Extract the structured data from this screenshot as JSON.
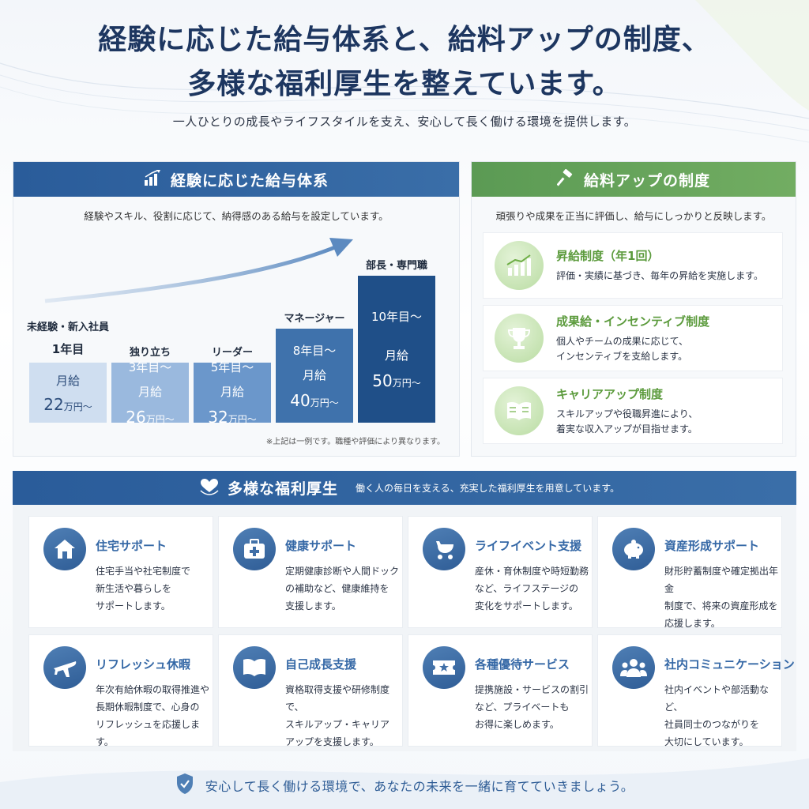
{
  "header": {
    "title_line1": "経験に応じた給与体系と、給料アップの制度、",
    "title_line2": "多様な福利厚生を整えています。",
    "subtitle": "一人ひとりの成長やライフスタイルを支え、安心して長く働ける環境を提供します。"
  },
  "salary": {
    "title": "経験に応じた給与体系",
    "description": "経験やスキル、役割に応じて、納得感のある給与を設定しています。",
    "note": "※上記は一例です。職種や評価により異なります。",
    "levels": [
      {
        "rank": "未経験・新入社員",
        "year": "1年目",
        "label": "月給",
        "amount": "22",
        "unit": "万円〜"
      },
      {
        "rank": "独り立ち",
        "year": "3年目〜",
        "label": "月給",
        "amount": "26",
        "unit": "万円〜"
      },
      {
        "rank": "リーダー",
        "year": "5年目〜",
        "label": "月給",
        "amount": "32",
        "unit": "万円〜"
      },
      {
        "rank": "マネージャー",
        "year": "8年目〜",
        "label": "月給",
        "amount": "40",
        "unit": "万円〜"
      },
      {
        "rank": "部長・専門職",
        "year": "10年目〜",
        "label": "月給",
        "amount": "50",
        "unit": "万円〜"
      }
    ],
    "colors": [
      "#cfdef0",
      "#9ab9de",
      "#6b97cb",
      "#3f72ac",
      "#1f4f88"
    ]
  },
  "raise": {
    "title": "給料アップの制度",
    "description": "頑張りや成果を正当に評価し、給与にしっかりと反映します。",
    "items": [
      {
        "icon": "growth-chart-icon",
        "title": "昇給制度（年1回）",
        "body_line1": "評価・実績に基づき、毎年の昇給を実施します。",
        "body_line2": ""
      },
      {
        "icon": "trophy-icon",
        "title": "成果給・インセンティブ制度",
        "body_line1": "個人やチームの成果に応じて、",
        "body_line2": "インセンティブを支給します。"
      },
      {
        "icon": "book-icon",
        "title": "キャリアアップ制度",
        "body_line1": "スキルアップや役職昇進により、",
        "body_line2": "着実な収入アップが目指せます。"
      }
    ]
  },
  "benefits": {
    "title": "多様な福利厚生",
    "subtitle": "働く人の毎日を支える、充実した福利厚生を用意しています。",
    "items": [
      {
        "icon": "house-icon",
        "title": "住宅サポート",
        "l1": "住宅手当や社宅制度で",
        "l2": "新生活や暮らしを",
        "l3": "サポートします。"
      },
      {
        "icon": "medical-kit-icon",
        "title": "健康サポート",
        "l1": "定期健康診断や人間ドック",
        "l2": "の補助など、健康維持を",
        "l3": "支援します。"
      },
      {
        "icon": "stroller-icon",
        "title": "ライフイベント支援",
        "l1": "産休・育休制度や時短勤務",
        "l2": "など、ライフステージの",
        "l3": "変化をサポートします。"
      },
      {
        "icon": "piggy-bank-icon",
        "title": "資産形成サポート",
        "l1": "財形貯蓄制度や確定拠出年金",
        "l2": "制度で、将来の資産形成を",
        "l3": "応援します。"
      },
      {
        "icon": "airplane-icon",
        "title": "リフレッシュ休暇",
        "l1": "年次有給休暇の取得推進や",
        "l2": "長期休暇制度で、心身の",
        "l3": "リフレッシュを応援します。"
      },
      {
        "icon": "open-book-icon",
        "title": "自己成長支援",
        "l1": "資格取得支援や研修制度で、",
        "l2": "スキルアップ・キャリア",
        "l3": "アップを支援します。"
      },
      {
        "icon": "ticket-icon",
        "title": "各種優待サービス",
        "l1": "提携施設・サービスの割引",
        "l2": "など、プライベートも",
        "l3": "お得に楽しめます。"
      },
      {
        "icon": "people-icon",
        "title": "社内コミュニケーション",
        "l1": "社内イベントや部活動など、",
        "l2": "社員同士のつながりを",
        "l3": "大切にしています。"
      }
    ]
  },
  "footer": {
    "text": "安心して長く働ける環境で、あなたの未来を一緒に育てていきましょう。"
  }
}
